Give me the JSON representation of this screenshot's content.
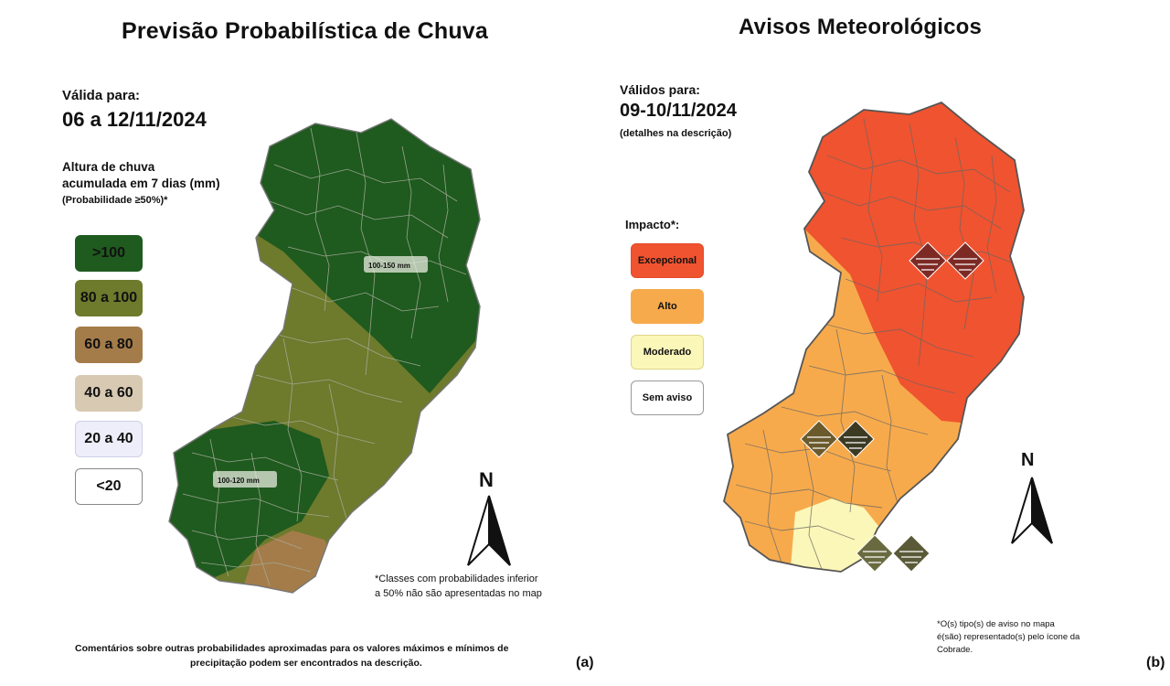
{
  "left": {
    "title": "Previsão Probabilística de Chuva",
    "valid_label": "Válida para:",
    "valid_date": "06 a 12/11/2024",
    "legend_title_1": "Altura de chuva",
    "legend_title_2": "acumulada em 7 dias (mm)",
    "legend_title_3": "(Probabilidade ≥50%)*",
    "legend": [
      {
        "label": ">100",
        "color": "#1f5a1f"
      },
      {
        "label": "80 a 100",
        "color": "#6e7a2c"
      },
      {
        "label": "60 a 80",
        "color": "#a47c4a"
      },
      {
        "label": "40 a 60",
        "color": "#d8c9b2"
      },
      {
        "label": "20 a 40",
        "color": "#eeeefa"
      },
      {
        "label": "<20",
        "color": "#ffffff"
      }
    ],
    "map_labels": [
      "100-150 mm",
      "100-120 mm"
    ],
    "north": "N",
    "footnote_1": "*Classes com probabilidades inferior",
    "footnote_2": "a 50% não são apresentadas no map",
    "comment_1": "Comentários sobre outras probabilidades aproximadas para os valores máximos e mínimos de",
    "comment_2": "precipitação podem ser encontrados na descrição.",
    "panel": "(a)"
  },
  "right": {
    "title": "Avisos Meteorológicos",
    "valid_label": "Válidos para:",
    "valid_date": "09-10/11/2024",
    "valid_note": "(detalhes na descrição)",
    "impact_title": "Impacto*:",
    "impacts": [
      {
        "label": "Excepcional",
        "color": "#f0532f"
      },
      {
        "label": "Alto",
        "color": "#f7aa4c"
      },
      {
        "label": "Moderado",
        "color": "#fbf7b8"
      },
      {
        "label": "Sem aviso",
        "color": "#ffffff"
      }
    ],
    "north": "N",
    "footnote_1": "*O(s) tipo(s) de aviso no mapa",
    "footnote_2": "é(são) representado(s) pelo ícone da",
    "footnote_3": "Cobrade.",
    "panel": "(b)"
  }
}
